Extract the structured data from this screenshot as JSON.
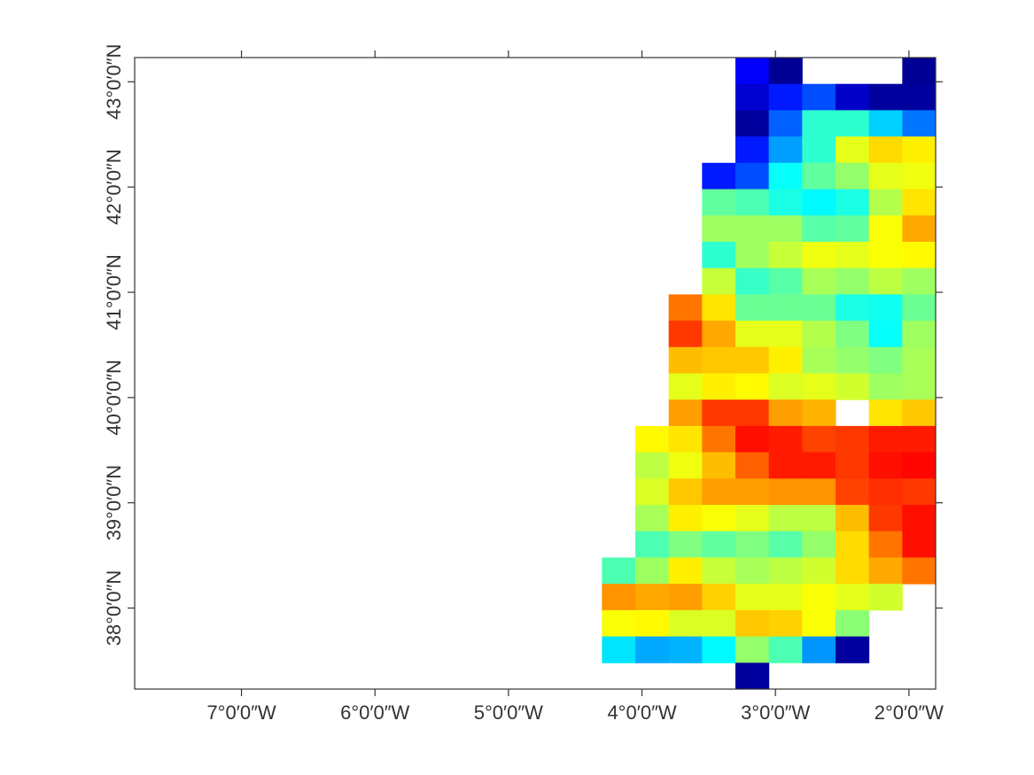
{
  "chart_data": {
    "type": "raster",
    "colormap": "jet",
    "vlim": [
      0,
      1
    ],
    "xlim": [
      -7.8,
      -1.8
    ],
    "ylim": [
      37.23,
      43.23
    ],
    "xticks": [
      {
        "value": -7,
        "label": "7°0′0″W"
      },
      {
        "value": -6,
        "label": "6°0′0″W"
      },
      {
        "value": -5,
        "label": "5°0′0″W"
      },
      {
        "value": -4,
        "label": "4°0′0″W"
      },
      {
        "value": -3,
        "label": "3°0′0″W"
      },
      {
        "value": -2,
        "label": "2°0′0″W"
      }
    ],
    "yticks": [
      {
        "value": 38,
        "label": "38°0′0″N"
      },
      {
        "value": 39,
        "label": "39°0′0″N"
      },
      {
        "value": 40,
        "label": "40°0′0″N"
      },
      {
        "value": 41,
        "label": "41°0′0″N"
      },
      {
        "value": 42,
        "label": "42°0′0″N"
      },
      {
        "value": 43,
        "label": "43°0′0″N"
      }
    ],
    "x": [
      -4.3,
      -4.05,
      -3.8,
      -3.55,
      -3.3,
      -3.05,
      -2.8,
      -2.55,
      -2.3,
      -2.05
    ],
    "y": [
      43.23,
      42.98,
      42.73,
      42.48,
      42.23,
      41.98,
      41.73,
      41.48,
      41.23,
      40.98,
      40.73,
      40.48,
      40.23,
      39.98,
      39.73,
      39.48,
      39.23,
      38.98,
      38.73,
      38.48,
      38.23,
      37.98,
      37.73,
      37.48
    ],
    "values": [
      [
        null,
        null,
        null,
        null,
        0.12,
        0.02,
        null,
        null,
        null,
        0.02
      ],
      [
        null,
        null,
        null,
        null,
        0.08,
        0.15,
        0.2,
        0.07,
        0.03,
        0.03
      ],
      [
        null,
        null,
        null,
        null,
        0.03,
        0.22,
        0.42,
        0.42,
        0.33,
        0.24
      ],
      [
        null,
        null,
        null,
        null,
        0.15,
        0.28,
        0.42,
        0.6,
        0.66,
        0.64
      ],
      [
        null,
        null,
        null,
        0.15,
        0.2,
        0.38,
        0.47,
        0.52,
        0.6,
        0.61
      ],
      [
        null,
        null,
        null,
        0.47,
        0.45,
        0.4,
        0.37,
        0.4,
        0.55,
        0.65
      ],
      [
        null,
        null,
        null,
        0.53,
        0.53,
        0.53,
        0.46,
        0.47,
        0.62,
        0.71
      ],
      [
        null,
        null,
        null,
        0.42,
        0.53,
        0.57,
        0.61,
        0.6,
        0.62,
        0.63
      ],
      [
        null,
        null,
        null,
        0.57,
        0.43,
        0.46,
        0.54,
        0.52,
        0.56,
        0.53
      ],
      [
        null,
        null,
        0.76,
        0.65,
        0.48,
        0.48,
        0.48,
        0.4,
        0.39,
        0.48
      ],
      [
        null,
        null,
        0.82,
        0.71,
        0.6,
        0.6,
        0.55,
        0.5,
        0.38,
        0.53
      ],
      [
        null,
        null,
        0.69,
        0.68,
        0.68,
        0.64,
        0.54,
        0.52,
        0.5,
        0.54
      ],
      [
        null,
        null,
        0.6,
        0.64,
        0.63,
        0.59,
        0.6,
        0.58,
        0.53,
        0.54
      ],
      [
        null,
        null,
        0.72,
        0.82,
        0.82,
        0.72,
        0.7,
        null,
        0.65,
        0.68
      ],
      [
        null,
        0.63,
        0.65,
        0.76,
        0.86,
        0.85,
        0.81,
        0.82,
        0.85,
        0.85
      ],
      [
        null,
        0.56,
        0.61,
        0.69,
        0.78,
        0.85,
        0.85,
        0.82,
        0.86,
        0.87
      ],
      [
        null,
        0.59,
        0.68,
        0.72,
        0.72,
        0.73,
        0.73,
        0.81,
        0.83,
        0.82
      ],
      [
        null,
        0.54,
        0.64,
        0.62,
        0.6,
        0.56,
        0.56,
        0.69,
        0.82,
        0.86
      ],
      [
        null,
        0.45,
        0.5,
        0.47,
        0.5,
        0.46,
        0.52,
        0.66,
        0.76,
        0.86
      ],
      [
        0.45,
        0.53,
        0.64,
        0.57,
        0.54,
        0.56,
        0.58,
        0.66,
        0.71,
        0.76
      ],
      [
        0.73,
        0.71,
        0.72,
        0.67,
        0.6,
        0.6,
        0.62,
        0.6,
        0.58,
        null
      ],
      [
        0.62,
        0.63,
        0.59,
        0.59,
        0.68,
        0.67,
        0.62,
        0.51,
        null,
        null
      ],
      [
        0.35,
        0.29,
        0.3,
        0.37,
        0.52,
        0.45,
        0.27,
        0.03,
        null,
        null
      ],
      [
        null,
        null,
        null,
        null,
        0.03,
        null,
        null,
        null,
        null,
        null
      ]
    ]
  }
}
